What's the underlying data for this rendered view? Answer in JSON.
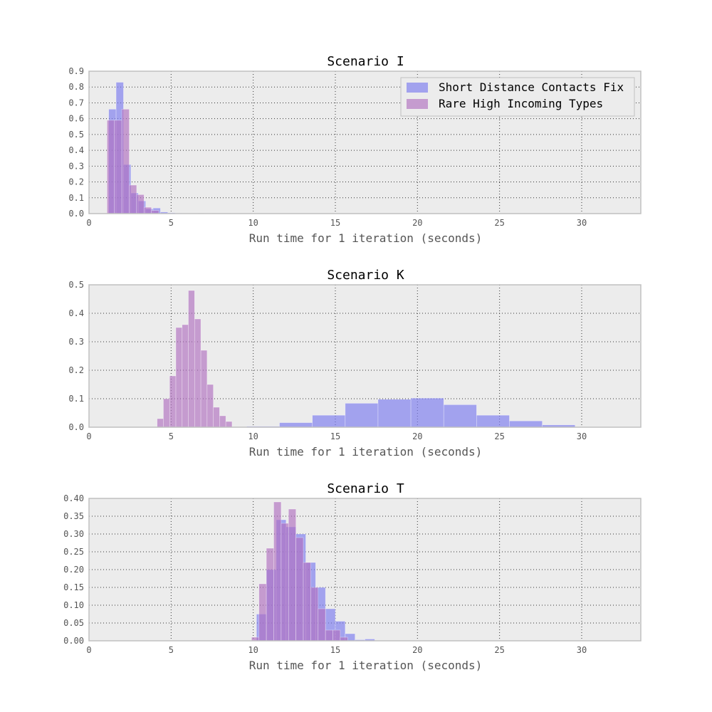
{
  "colors": {
    "series_a": "#7b7bf0",
    "series_b": "#b070c0",
    "panel_bg": "#ececec",
    "panel_border": "#c0c0c0",
    "grid": "#333333"
  },
  "legend": {
    "placement": "upper-right",
    "panel": 0,
    "entries": [
      "Short Distance Contacts Fix",
      "Rare High Incoming Types"
    ]
  },
  "chart_data": [
    {
      "type": "bar",
      "title": "Scenario I",
      "xlabel": "Run time for 1 iteration (seconds)",
      "ylabel": "",
      "xlim": [
        0,
        33.6
      ],
      "ylim": [
        0,
        0.9
      ],
      "xticks": [
        "0",
        "5",
        "10",
        "15",
        "20",
        "25",
        "30"
      ],
      "xtick_values": [
        0,
        5,
        10,
        15,
        20,
        25,
        30
      ],
      "yticks": [
        "0.0",
        "0.1",
        "0.2",
        "0.3",
        "0.4",
        "0.5",
        "0.6",
        "0.7",
        "0.8",
        "0.9"
      ],
      "ytick_values": [
        0,
        0.1,
        0.2,
        0.3,
        0.4,
        0.5,
        0.6,
        0.7,
        0.8,
        0.9
      ],
      "grid": true,
      "series": [
        {
          "name": "Short Distance Contacts Fix",
          "bin_width": 0.45,
          "bins": [
            [
              1.2,
              0.66
            ],
            [
              1.65,
              0.83
            ],
            [
              2.1,
              0.31
            ],
            [
              2.55,
              0.13
            ],
            [
              3.0,
              0.08
            ],
            [
              3.45,
              0.03
            ],
            [
              3.9,
              0.035
            ],
            [
              4.35,
              0.01
            ],
            [
              4.8,
              0.005
            ],
            [
              5.25,
              0.003
            ],
            [
              5.7,
              0.002
            ],
            [
              6.15,
              0.002
            ],
            [
              6.6,
              0.001
            ],
            [
              7.05,
              0.002
            ],
            [
              7.5,
              0.001
            ],
            [
              8.7,
              0.002
            ]
          ]
        },
        {
          "name": "Rare High Incoming Types",
          "bin_width": 0.45,
          "bins": [
            [
              1.1,
              0.59
            ],
            [
              1.55,
              0.59
            ],
            [
              2.0,
              0.66
            ],
            [
              2.45,
              0.18
            ],
            [
              2.9,
              0.12
            ],
            [
              3.35,
              0.04
            ],
            [
              3.8,
              0.02
            ]
          ]
        }
      ]
    },
    {
      "type": "bar",
      "title": "Scenario K",
      "xlabel": "Run time for 1 iteration (seconds)",
      "ylabel": "",
      "xlim": [
        0,
        33.6
      ],
      "ylim": [
        0,
        0.5
      ],
      "xticks": [
        "0",
        "5",
        "10",
        "15",
        "20",
        "25",
        "30"
      ],
      "xtick_values": [
        0,
        5,
        10,
        15,
        20,
        25,
        30
      ],
      "yticks": [
        "0.0",
        "0.1",
        "0.2",
        "0.3",
        "0.4",
        "0.5"
      ],
      "ytick_values": [
        0,
        0.1,
        0.2,
        0.3,
        0.4,
        0.5
      ],
      "grid": true,
      "series": [
        {
          "name": "Short Distance Contacts Fix",
          "bin_width": 2.0,
          "bins": [
            [
              9.6,
              0.003
            ],
            [
              11.6,
              0.016
            ],
            [
              13.6,
              0.042
            ],
            [
              15.6,
              0.084
            ],
            [
              17.6,
              0.098
            ],
            [
              19.6,
              0.102
            ],
            [
              21.6,
              0.079
            ],
            [
              23.6,
              0.042
            ],
            [
              25.6,
              0.022
            ],
            [
              27.6,
              0.008
            ],
            [
              29.6,
              0.001
            ],
            [
              31.6,
              0.001
            ]
          ]
        },
        {
          "name": "Rare High Incoming Types",
          "bin_width": 0.38,
          "bins": [
            [
              4.15,
              0.03
            ],
            [
              4.53,
              0.1
            ],
            [
              4.91,
              0.18
            ],
            [
              5.29,
              0.35
            ],
            [
              5.67,
              0.36
            ],
            [
              6.05,
              0.48
            ],
            [
              6.43,
              0.38
            ],
            [
              6.81,
              0.27
            ],
            [
              7.19,
              0.15
            ],
            [
              7.57,
              0.07
            ],
            [
              7.95,
              0.04
            ],
            [
              8.33,
              0.02
            ]
          ]
        }
      ]
    },
    {
      "type": "bar",
      "title": "Scenario T",
      "xlabel": "Run time for 1 iteration (seconds)",
      "ylabel": "",
      "xlim": [
        0,
        33.6
      ],
      "ylim": [
        0,
        0.4
      ],
      "xticks": [
        "0",
        "5",
        "10",
        "15",
        "20",
        "25",
        "30"
      ],
      "xtick_values": [
        0,
        5,
        10,
        15,
        20,
        25,
        30
      ],
      "yticks": [
        "0.00",
        "0.05",
        "0.10",
        "0.15",
        "0.20",
        "0.25",
        "0.30",
        "0.35",
        "0.40"
      ],
      "ytick_values": [
        0,
        0.05,
        0.1,
        0.15,
        0.2,
        0.25,
        0.3,
        0.35,
        0.4
      ],
      "grid": true,
      "series": [
        {
          "name": "Short Distance Contacts Fix",
          "bin_width": 0.6,
          "bins": [
            [
              10.2,
              0.075
            ],
            [
              10.8,
              0.2
            ],
            [
              11.4,
              0.34
            ],
            [
              12.0,
              0.32
            ],
            [
              12.6,
              0.3
            ],
            [
              13.2,
              0.22
            ],
            [
              13.8,
              0.15
            ],
            [
              14.4,
              0.09
            ],
            [
              15.0,
              0.055
            ],
            [
              15.6,
              0.02
            ],
            [
              16.2,
              0.003
            ],
            [
              16.8,
              0.005
            ]
          ]
        },
        {
          "name": "Rare High Incoming Types",
          "bin_width": 0.45,
          "bins": [
            [
              9.9,
              0.01
            ],
            [
              10.35,
              0.16
            ],
            [
              10.8,
              0.26
            ],
            [
              11.25,
              0.39
            ],
            [
              11.7,
              0.33
            ],
            [
              12.15,
              0.37
            ],
            [
              12.6,
              0.29
            ],
            [
              13.05,
              0.22
            ],
            [
              13.5,
              0.15
            ],
            [
              13.95,
              0.09
            ],
            [
              14.4,
              0.03
            ],
            [
              14.85,
              0.03
            ],
            [
              15.3,
              0.01
            ]
          ]
        }
      ]
    }
  ]
}
